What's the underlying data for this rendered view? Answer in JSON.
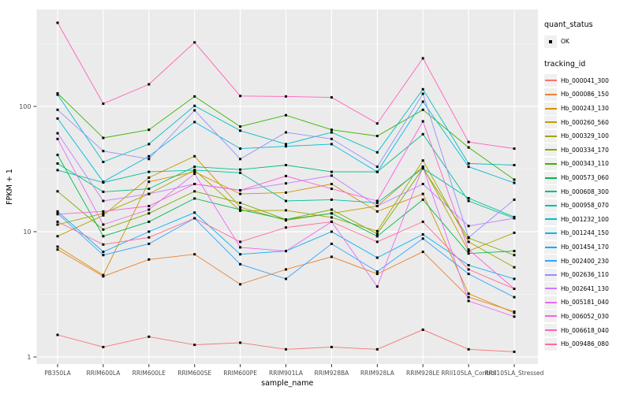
{
  "figure": {
    "background": "#FFFFFF",
    "panel_background": "#EBEBEB",
    "grid_major_color": "#FFFFFF",
    "grid_minor_color": "#F5F5F5",
    "axis_text_color": "#4D4D4D",
    "axis_title_color": "#000000",
    "marker_color": "#000000"
  },
  "axes": {
    "x_title": "sample_name",
    "y_title": "FPKM + 1",
    "y_tick_labels": [
      "1",
      "10",
      "100"
    ],
    "y_tick_values": [
      1,
      10,
      100
    ],
    "y_minor_values": [
      3.162,
      31.62,
      316.2
    ]
  },
  "legend": {
    "quant_title": "quant_status",
    "quant_item_label": "OK",
    "tracking_title": "tracking_id"
  },
  "chart_data": {
    "type": "line",
    "x_axis": "sample_name",
    "y_axis": "FPKM + 1",
    "y_scale": "log10",
    "ylim": [
      0.88,
      594
    ],
    "grid": true,
    "legend_position": "right",
    "point_shape": "filled-square",
    "quant_status": "OK",
    "categories": [
      "PB350LA",
      "RRIM600LA",
      "RRIM600LE",
      "RRIM600SE",
      "RRIM600PE",
      "RRIM901LA",
      "RRIM928BA",
      "RRIM928LA",
      "RRIM928LE",
      "RRII105LA_Control",
      "RRII105LA_Stressed"
    ],
    "series": [
      {
        "name": "Hb_000041_300",
        "color": "#F8766D",
        "values": [
          1.5,
          1.2,
          1.45,
          1.25,
          1.3,
          1.15,
          1.2,
          1.15,
          1.65,
          1.15,
          1.1
        ]
      },
      {
        "name": "Hb_000086_150",
        "color": "#EA8331",
        "values": [
          7.2,
          4.4,
          6.0,
          6.6,
          3.8,
          5.0,
          6.3,
          4.6,
          6.9,
          3.0,
          2.3
        ]
      },
      {
        "name": "Hb_000243_130",
        "color": "#D89000",
        "values": [
          7.6,
          4.5,
          25,
          30,
          20,
          20.5,
          24,
          14.5,
          20,
          3.2,
          2.25
        ]
      },
      {
        "name": "Hb_000260_560",
        "color": "#C09B00",
        "values": [
          9.2,
          13.5,
          27,
          40,
          15.7,
          12.3,
          14,
          16,
          33,
          7.0,
          9.8
        ]
      },
      {
        "name": "Hb_000329_100",
        "color": "#A3A500",
        "values": [
          11.4,
          14,
          20,
          31,
          14.7,
          14.8,
          13,
          10.1,
          37,
          8.3,
          5.2
        ]
      },
      {
        "name": "Hb_000334_170",
        "color": "#7CAE00",
        "values": [
          21,
          10.4,
          14,
          21,
          17,
          12.5,
          15,
          9.6,
          32,
          8.9,
          6.5
        ]
      },
      {
        "name": "Hb_000343_110",
        "color": "#39B600",
        "values": [
          127,
          56,
          65,
          120,
          69,
          85,
          65,
          58,
          94,
          47,
          26
        ]
      },
      {
        "name": "Hb_000573_060",
        "color": "#00BB4E",
        "values": [
          41,
          9.2,
          12,
          18.4,
          15,
          12.5,
          14,
          9.2,
          18,
          6.7,
          7.0
        ]
      },
      {
        "name": "Hb_000608_300",
        "color": "#00BF7D",
        "values": [
          35,
          20.8,
          22,
          33,
          31.3,
          34,
          30,
          30,
          60,
          17.6,
          12.8
        ]
      },
      {
        "name": "Hb_000958_070",
        "color": "#00C1A3",
        "values": [
          31,
          24.7,
          30,
          31,
          29.5,
          17.6,
          18,
          17,
          32,
          18.5,
          13.1
        ]
      },
      {
        "name": "Hb_001232_100",
        "color": "#00BFC4",
        "values": [
          124,
          36,
          50,
          101,
          64,
          50,
          62,
          43,
          137,
          35,
          34
        ]
      },
      {
        "name": "Hb_001244_150",
        "color": "#00BAE0",
        "values": [
          80,
          25,
          40,
          75,
          46,
          48,
          50,
          30,
          109,
          33,
          24.5
        ]
      },
      {
        "name": "Hb_001454_170",
        "color": "#00B0F6",
        "values": [
          14.5,
          6.9,
          10,
          14.2,
          6.6,
          7.0,
          10,
          6.2,
          9.5,
          5.4,
          4.2
        ]
      },
      {
        "name": "Hb_002400_230",
        "color": "#35A2FF",
        "values": [
          14,
          6.5,
          8,
          12.8,
          5.5,
          4.2,
          8,
          4.8,
          8.8,
          4.6,
          3.0
        ]
      },
      {
        "name": "Hb_002636_110",
        "color": "#9590FF",
        "values": [
          94,
          44,
          38,
          93,
          38,
          62,
          55,
          33,
          126,
          9.0,
          18
        ]
      },
      {
        "name": "Hb_002641_130",
        "color": "#C77CFF",
        "values": [
          61,
          17.6,
          20,
          24,
          21.4,
          24.3,
          28,
          16,
          24,
          11.1,
          12.8
        ]
      },
      {
        "name": "Hb_005181_040",
        "color": "#E76BF3",
        "values": [
          55,
          11.4,
          15,
          29,
          7.5,
          7.0,
          12,
          3.65,
          33,
          2.8,
          2.1
        ]
      },
      {
        "name": "Hb_006052_030",
        "color": "#FA62DB",
        "values": [
          13.8,
          14.5,
          16,
          24,
          21.4,
          27.8,
          22,
          17.6,
          76,
          7.2,
          3.5
        ]
      },
      {
        "name": "Hb_006618_040",
        "color": "#FF62BC",
        "values": [
          465,
          105,
          150,
          324,
          121,
          120,
          118,
          73,
          242,
          52,
          46
        ]
      },
      {
        "name": "Hb_009486_080",
        "color": "#FF6A98",
        "values": [
          12,
          7.9,
          9,
          12.8,
          8.3,
          10.8,
          12,
          8.3,
          12,
          5.0,
          3.5
        ]
      }
    ]
  }
}
